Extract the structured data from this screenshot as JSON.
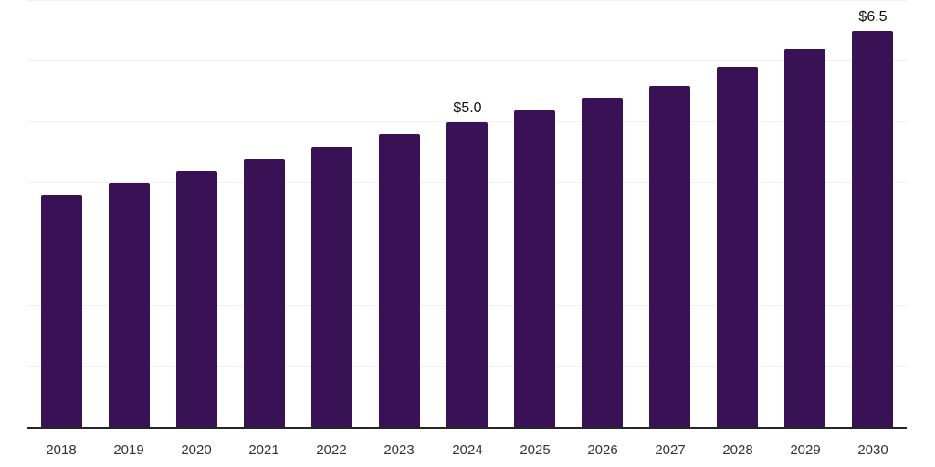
{
  "chart_data": {
    "type": "bar",
    "title": "",
    "xlabel": "",
    "ylabel": "",
    "categories": [
      "2018",
      "2019",
      "2020",
      "2021",
      "2022",
      "2023",
      "2024",
      "2025",
      "2026",
      "2027",
      "2028",
      "2029",
      "2030"
    ],
    "values": [
      3.8,
      4.0,
      4.2,
      4.4,
      4.6,
      4.8,
      5.0,
      5.2,
      5.4,
      5.6,
      5.9,
      6.2,
      6.5
    ],
    "value_labels": [
      null,
      null,
      null,
      null,
      null,
      null,
      "$5.0",
      null,
      null,
      null,
      null,
      null,
      "$6.5"
    ],
    "ylim": [
      0,
      7
    ],
    "grid": "horizontal",
    "gridline_step": 1,
    "legend_position": "none",
    "colors": {
      "bar": "#381254",
      "axis_line": "#262626",
      "gridline": "#f0f0f0",
      "tick_label": "#333333",
      "value_label": "#111111",
      "background": "#ffffff"
    }
  }
}
